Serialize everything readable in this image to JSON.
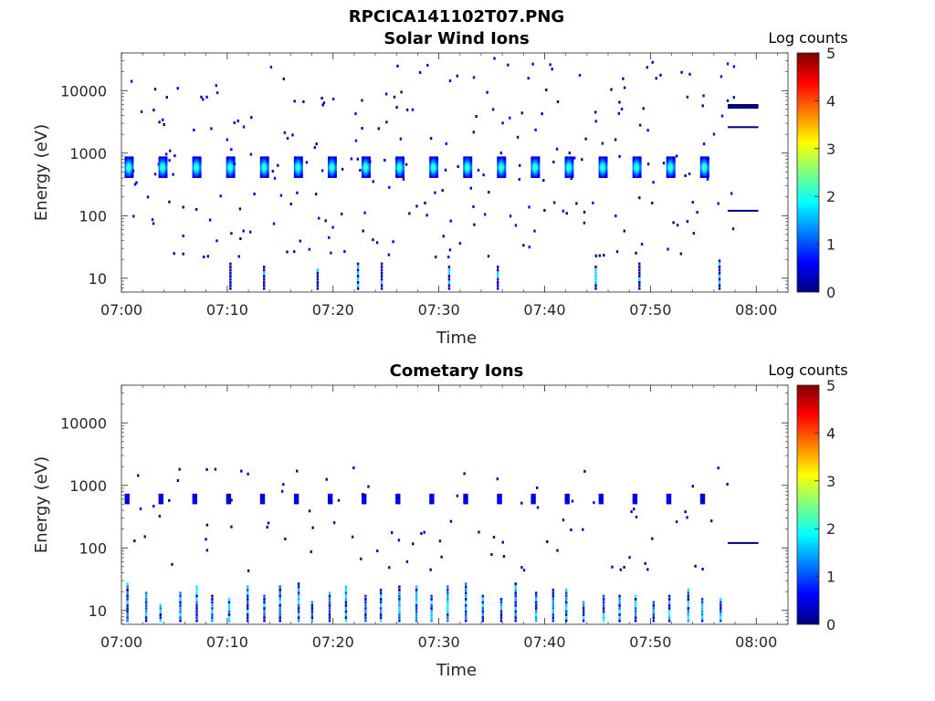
{
  "figure_title": "RPCICA141102T07.PNG",
  "colors": {
    "colormap": [
      "#00007f",
      "#0000ff",
      "#007fff",
      "#00ffff",
      "#7fff7f",
      "#ffff00",
      "#ff7f00",
      "#ff0000",
      "#7f0000"
    ],
    "axis": "#262626"
  },
  "chart_data": [
    {
      "type": "heatmap",
      "title": "Solar Wind Ions",
      "xlabel": "Time",
      "ylabel": "Energy (eV)",
      "x_ticks": [
        "07:00",
        "07:10",
        "07:20",
        "07:30",
        "07:40",
        "07:50",
        "08:00"
      ],
      "y_ticks": [
        "10",
        "100",
        "1000",
        "10000"
      ],
      "y_scale": "log",
      "xlim": [
        "07:00",
        "08:03"
      ],
      "ylim": [
        6,
        40000
      ],
      "colorbar": {
        "label": "Log counts",
        "ticks": [
          "0",
          "1",
          "2",
          "3",
          "4",
          "5"
        ],
        "range": [
          0,
          5
        ]
      },
      "notes": "Periodic energy-time sweeps: main solar wind peak ~400-800 eV (log counts up to ~2.5) every ~3.2 min from 07:00 to 07:57; sparse low counts at 10-30 eV; calibration lines at ~120, ~2600, ~5500 eV after 07:57",
      "peak_band": {
        "energy_range_eV": [
          400,
          800
        ],
        "max_log_counts": 2.5,
        "period_min": 3.2
      }
    },
    {
      "type": "heatmap",
      "title": "Cometary Ions",
      "xlabel": "Time",
      "ylabel": "Energy (eV)",
      "x_ticks": [
        "07:00",
        "07:10",
        "07:20",
        "07:30",
        "07:40",
        "07:50",
        "08:00"
      ],
      "y_ticks": [
        "10",
        "100",
        "1000",
        "10000"
      ],
      "y_scale": "log",
      "xlim": [
        "07:00",
        "08:03"
      ],
      "ylim": [
        6,
        40000
      ],
      "colorbar": {
        "label": "Log counts",
        "ticks": [
          "0",
          "1",
          "2",
          "3",
          "4",
          "5"
        ],
        "range": [
          0,
          5
        ]
      },
      "notes": "Low-energy cometary ions at 7-25 eV (log counts up to ~2); sparse counts at ~500-700 eV; calibration line at ~120 eV after 07:57",
      "peak_band": {
        "energy_range_eV": [
          7,
          25
        ],
        "max_log_counts": 2.0,
        "period_min": 3.2
      }
    }
  ]
}
